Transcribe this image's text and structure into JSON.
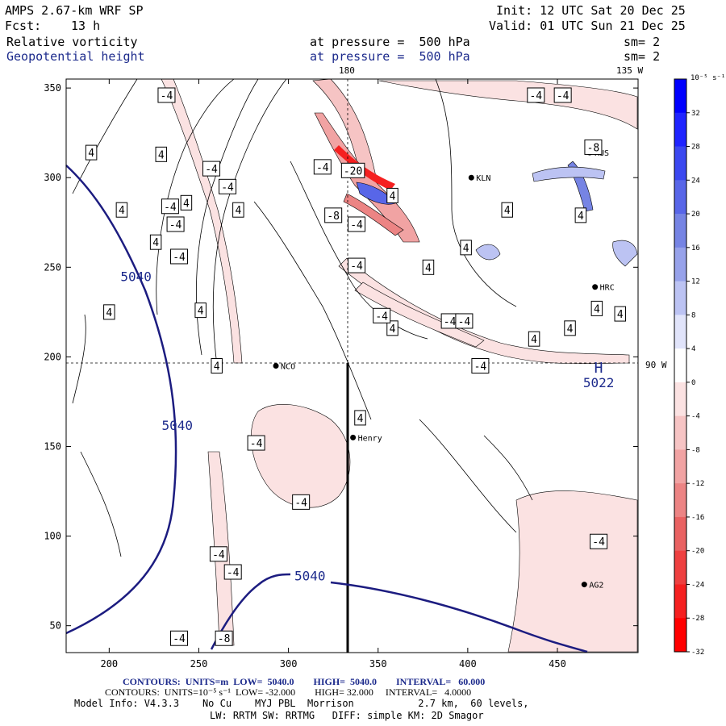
{
  "header": {
    "model": "AMPS 2.67-km WRF SP",
    "init": "Init: 12 UTC Sat 20 Dec 25",
    "fcst_label": "Fcst:",
    "fcst_value": "13 h",
    "valid": "Valid: 01 UTC Sun 21 Dec 25",
    "field1": "Relative vorticity",
    "field1_level": "at pressure =  500 hPa",
    "field1_sm": "sm= 2",
    "field2": "Geopotential height",
    "field2_level": "at pressure =  500 hPa",
    "field2_sm": "sm= 2"
  },
  "map": {
    "lon_labels": {
      "top_180": "180",
      "top_135w": "135 W",
      "right_90w": "90 W"
    },
    "stations": [
      {
        "name": "NCO",
        "x": 293,
        "y": 195
      },
      {
        "name": "Henry",
        "x": 336,
        "y": 155
      },
      {
        "name": "KLN",
        "x": 402,
        "y": 300
      },
      {
        "name": "RUS",
        "x": 468,
        "y": 314
      },
      {
        "name": "HRC",
        "x": 471,
        "y": 239
      },
      {
        "name": "AG2",
        "x": 465,
        "y": 73
      }
    ],
    "high_marker": {
      "letter": "H",
      "value": "5022",
      "x": 473,
      "y": 192
    },
    "height_labels": [
      {
        "text": "5040",
        "x": 215,
        "y": 245
      },
      {
        "text": "5040",
        "x": 238,
        "y": 162
      },
      {
        "text": "5040",
        "x": 312,
        "y": 78
      }
    ],
    "vort_labels_pos": [
      {
        "text": "4",
        "x": 190,
        "y": 314
      },
      {
        "text": "4",
        "x": 207,
        "y": 282
      },
      {
        "text": "4",
        "x": 229,
        "y": 313
      },
      {
        "text": "4",
        "x": 226,
        "y": 264
      },
      {
        "text": "4",
        "x": 243,
        "y": 286
      },
      {
        "text": "4",
        "x": 251,
        "y": 226
      },
      {
        "text": "4",
        "x": 260,
        "y": 195
      },
      {
        "text": "4",
        "x": 272,
        "y": 282
      },
      {
        "text": "4",
        "x": 340,
        "y": 166
      },
      {
        "text": "4",
        "x": 358,
        "y": 216
      },
      {
        "text": "4",
        "x": 399,
        "y": 261
      },
      {
        "text": "4",
        "x": 422,
        "y": 282
      },
      {
        "text": "4",
        "x": 437,
        "y": 210
      },
      {
        "text": "4",
        "x": 463,
        "y": 279
      },
      {
        "text": "4",
        "x": 472,
        "y": 227
      },
      {
        "text": "4",
        "x": 485,
        "y": 224
      },
      {
        "text": "4",
        "x": 457,
        "y": 216
      },
      {
        "text": "4",
        "x": 358,
        "y": 290
      },
      {
        "text": "4",
        "x": 378,
        "y": 250
      },
      {
        "text": "4",
        "x": 200,
        "y": 225
      }
    ],
    "vort_labels_neg": [
      {
        "text": "-4",
        "x": 232,
        "y": 346
      },
      {
        "text": "-4",
        "x": 257,
        "y": 305
      },
      {
        "text": "-4",
        "x": 266,
        "y": 295
      },
      {
        "text": "-4",
        "x": 234,
        "y": 284
      },
      {
        "text": "-4",
        "x": 237,
        "y": 274
      },
      {
        "text": "-4",
        "x": 239,
        "y": 256
      },
      {
        "text": "-4",
        "x": 319,
        "y": 306
      },
      {
        "text": "-8",
        "x": 325,
        "y": 279
      },
      {
        "text": "-20",
        "x": 336,
        "y": 304
      },
      {
        "text": "-4",
        "x": 338,
        "y": 274
      },
      {
        "text": "-4",
        "x": 338,
        "y": 251
      },
      {
        "text": "-4",
        "x": 352,
        "y": 223
      },
      {
        "text": "-4",
        "x": 390,
        "y": 220
      },
      {
        "text": "-4",
        "x": 398,
        "y": 220
      },
      {
        "text": "-4",
        "x": 407,
        "y": 195
      },
      {
        "text": "-4",
        "x": 282,
        "y": 152
      },
      {
        "text": "-4",
        "x": 307,
        "y": 119
      },
      {
        "text": "-4",
        "x": 261,
        "y": 90
      },
      {
        "text": "-4",
        "x": 269,
        "y": 80
      },
      {
        "text": "-4",
        "x": 239,
        "y": 43
      },
      {
        "text": "-8",
        "x": 264,
        "y": 43
      },
      {
        "text": "-4",
        "x": 473,
        "y": 97
      },
      {
        "text": "-4",
        "x": 453,
        "y": 346
      },
      {
        "text": "-8",
        "x": 470,
        "y": 317
      },
      {
        "text": "-4",
        "x": 438,
        "y": 346
      }
    ]
  },
  "axes": {
    "x_ticks": [
      "200",
      "250",
      "300",
      "350",
      "400",
      "450"
    ],
    "y_ticks": [
      "350",
      "300",
      "250",
      "200",
      "150",
      "100",
      "50"
    ]
  },
  "colorbar": {
    "unit": "10⁻⁵ s⁻¹",
    "labels": [
      "32",
      "28",
      "24",
      "20",
      "16",
      "12",
      "8",
      "4",
      "0",
      "-4",
      "-8",
      "-12",
      "-16",
      "-20",
      "-24",
      "-28",
      "-32"
    ],
    "colors": [
      "#0000ff",
      "#1f24ff",
      "#3b48f0",
      "#5866e8",
      "#7684e4",
      "#97a2ea",
      "#bcc3f3",
      "#e1e4fa",
      "#ffffff",
      "#fbe2e2",
      "#f6c4c4",
      "#f1a3a3",
      "#ec8484",
      "#e96262",
      "#ee4040",
      "#f52020",
      "#ff0000"
    ]
  },
  "footer": {
    "line1": "CONTOURS:  UNITS=m  LOW=  5040.0        HIGH=  5040.0        INTERVAL=   60.000",
    "line2": "CONTOURS:  UNITS=10⁻⁵ s⁻¹  LOW= -32.000        HIGH= 32.000     INTERVAL=   4.0000",
    "line3": "Model Info: V4.3.3    No Cu    MYJ PBL  Morrison           2.7 km,  60 levels,",
    "line4": "LW: RRTM SW: RRTMG   DIFF: simple KM: 2D Smagor"
  }
}
